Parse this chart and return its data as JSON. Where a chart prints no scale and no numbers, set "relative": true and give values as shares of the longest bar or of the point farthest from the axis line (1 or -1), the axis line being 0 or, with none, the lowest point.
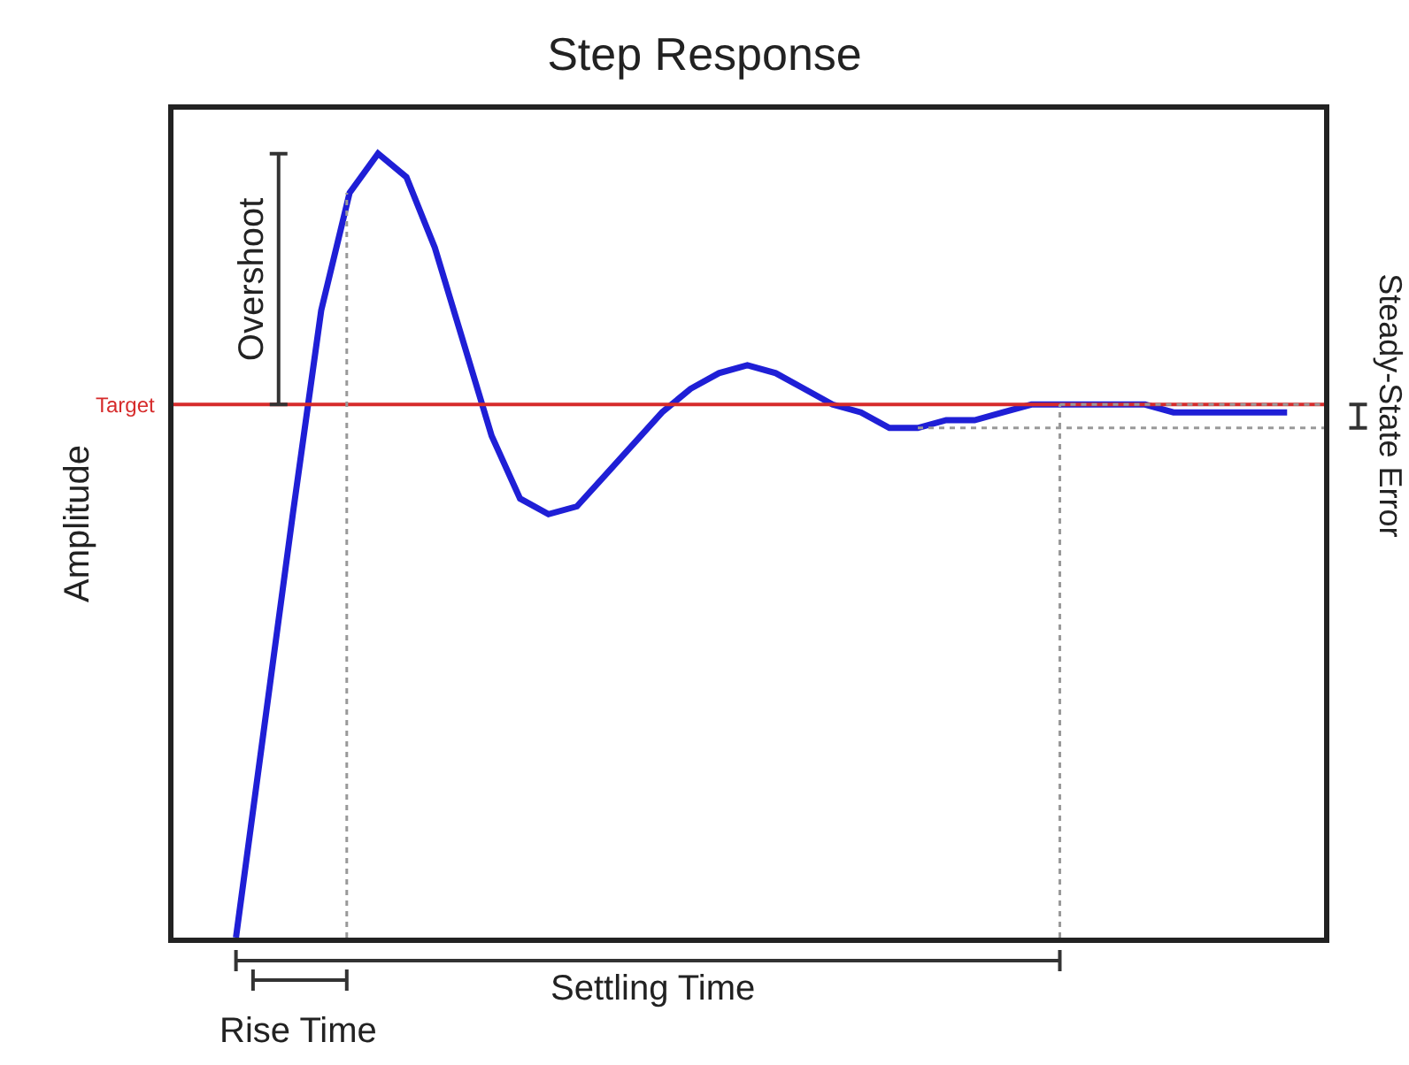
{
  "chart_data": {
    "type": "line",
    "title": "Step Response",
    "ylabel": "Amplitude",
    "relative": true,
    "categories": [
      null,
      null,
      null,
      null,
      null,
      null,
      null,
      null,
      null,
      null,
      null,
      null,
      null,
      null,
      null,
      null,
      null,
      null,
      null,
      null,
      null,
      null,
      null,
      null,
      null,
      null,
      null,
      null,
      null,
      null,
      null,
      null,
      null,
      null,
      null,
      null,
      null,
      null
    ],
    "series": [
      {
        "color": "#1f1fd6",
        "values": [
          0,
          0.27,
          0.54,
          0.8,
          0.95,
          1.0,
          0.97,
          0.88,
          0.76,
          0.64,
          0.56,
          0.54,
          0.55,
          0.59,
          0.63,
          0.67,
          0.7,
          0.72,
          0.73,
          0.72,
          0.7,
          0.68,
          0.67,
          0.65,
          0.65,
          0.66,
          0.66,
          0.67,
          0.68,
          0.68,
          0.68,
          0.68,
          0.68,
          0.67,
          0.67,
          0.67,
          0.67,
          0.67
        ]
      }
    ],
    "ref_lines": [
      {
        "axis": "y",
        "value": 0.68,
        "label": "Target",
        "color": "#d62b2b"
      }
    ],
    "annotations": [
      "Overshoot",
      "Rise Time",
      "Settling Time",
      "Steady-State Error"
    ],
    "marker": "none",
    "line_style": "solid"
  }
}
